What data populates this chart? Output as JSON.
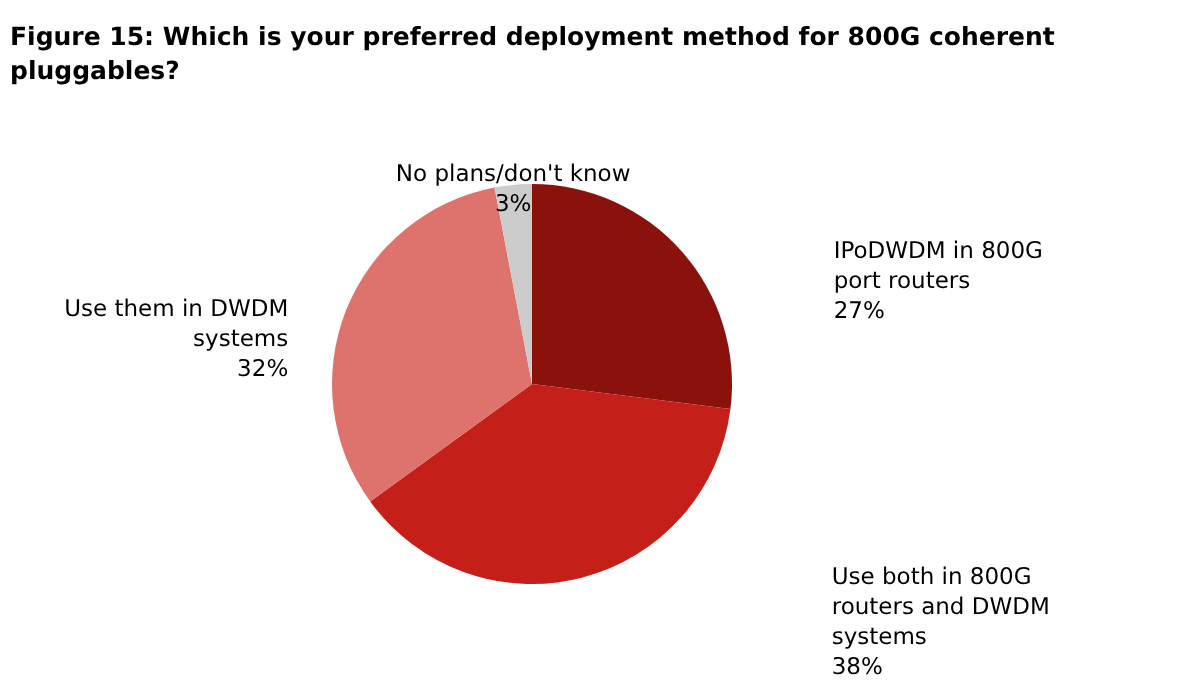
{
  "chart_data": {
    "type": "pie",
    "title": "Figure 15: Which is your preferred deployment method for 800G coherent pluggables?",
    "categories": [
      "IPoDWDM in 800G port routers",
      "Use both in 800G routers and DWDM systems",
      "Use them in DWDM systems",
      "No plans/don't know"
    ],
    "values": [
      27,
      38,
      32,
      3
    ],
    "value_labels": [
      "27%",
      "38%",
      "32%",
      "3%"
    ],
    "colors": [
      "#8b120c",
      "#c41f19",
      "#de726d",
      "#cccccc"
    ],
    "legend": false
  }
}
